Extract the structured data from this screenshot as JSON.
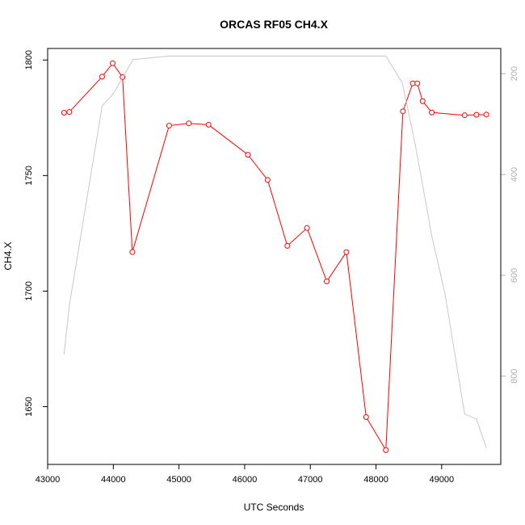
{
  "chart_data": {
    "type": "line",
    "title": "ORCAS RF05 CH4.X",
    "xlabel": "UTC Seconds",
    "ylabel": "CH4.X",
    "xlim": [
      43000,
      49900
    ],
    "ylim": [
      1625,
      1805
    ],
    "x_ticks": [
      43000,
      44000,
      45000,
      46000,
      47000,
      48000,
      49000
    ],
    "y_ticks": [
      1650,
      1700,
      1750,
      1800
    ],
    "y2_lim": [
      975,
      150
    ],
    "y2_ticks": [
      200,
      400,
      600,
      800
    ],
    "grid": false,
    "series": [
      {
        "color": "#ff0000",
        "axis": "left",
        "markers": true,
        "points": [
          [
            43250,
            1777.2
          ],
          [
            43330,
            1777.5
          ],
          [
            43830,
            1792.8
          ],
          [
            43990,
            1798.6
          ],
          [
            44140,
            1792.6
          ],
          [
            44290,
            1716.9
          ],
          [
            44850,
            1771.6
          ],
          [
            45150,
            1772.6
          ],
          [
            45450,
            1772.0
          ],
          [
            46050,
            1759.0
          ],
          [
            46350,
            1748.1
          ],
          [
            46650,
            1719.6
          ],
          [
            46950,
            1727.3
          ],
          [
            47250,
            1704.2
          ],
          [
            47550,
            1716.9
          ],
          [
            47850,
            1645.5
          ],
          [
            48150,
            1631.2
          ],
          [
            48410,
            1777.8
          ],
          [
            48560,
            1789.9
          ],
          [
            48630,
            1789.9
          ],
          [
            48710,
            1782.2
          ],
          [
            48850,
            1777.3
          ],
          [
            49350,
            1776.1
          ],
          [
            49530,
            1776.3
          ],
          [
            49680,
            1776.4
          ]
        ]
      },
      {
        "color": "#c8c8c8",
        "axis": "right",
        "markers": false,
        "points": [
          [
            43250,
            757
          ],
          [
            43330,
            660
          ],
          [
            43830,
            264
          ],
          [
            44000,
            240
          ],
          [
            44300,
            172
          ],
          [
            44850,
            165
          ],
          [
            46000,
            165
          ],
          [
            47000,
            165
          ],
          [
            48150,
            165
          ],
          [
            48400,
            218
          ],
          [
            48600,
            342
          ],
          [
            48700,
            414
          ],
          [
            48850,
            522
          ],
          [
            49050,
            636
          ],
          [
            49350,
            875
          ],
          [
            49530,
            885
          ],
          [
            49680,
            942
          ]
        ]
      }
    ]
  }
}
